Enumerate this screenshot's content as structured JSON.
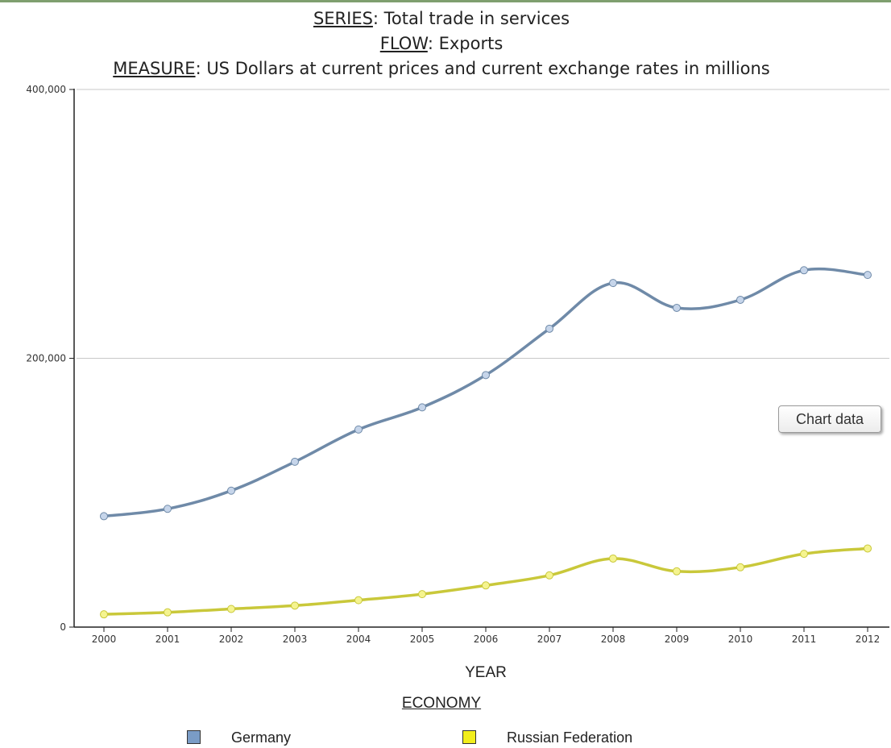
{
  "header": {
    "series_key": "SERIES",
    "series_value": ": Total trade in services",
    "flow_key": "FLOW",
    "flow_value": ": Exports",
    "measure_key": "MEASURE",
    "measure_value": ": US Dollars at current prices and current exchange rates in millions"
  },
  "legend": {
    "title": "ECONOMY",
    "items": [
      {
        "label": "Germany",
        "color": "#7a9cc6"
      },
      {
        "label": "Russian Federation",
        "color": "#f2ee1c"
      }
    ]
  },
  "buttons": {
    "chart_data_label": "Chart data"
  },
  "chart_data": {
    "type": "line",
    "xlabel": "YEAR",
    "ylabel": "",
    "ylim": [
      0,
      400000
    ],
    "yticks": [
      0,
      200000,
      400000
    ],
    "ytick_labels": [
      "0",
      "200,000",
      "400,000"
    ],
    "grid": true,
    "legend_position": "bottom",
    "categories": [
      "2000",
      "2001",
      "2002",
      "2003",
      "2004",
      "2005",
      "2006",
      "2007",
      "2008",
      "2009",
      "2010",
      "2011",
      "2012"
    ],
    "series": [
      {
        "name": "Germany",
        "line_color": "#6f8aa8",
        "marker_color": "#c6d5ea",
        "values": [
          82500,
          88000,
          101500,
          123000,
          147000,
          163500,
          187500,
          222000,
          256000,
          237500,
          243500,
          265500,
          262000
        ]
      },
      {
        "name": "Russian Federation",
        "line_color": "#c9c83a",
        "marker_color": "#f5f490",
        "values": [
          9500,
          11000,
          13500,
          16000,
          20000,
          24500,
          31000,
          38500,
          51000,
          41500,
          44500,
          54500,
          58500
        ]
      }
    ]
  }
}
